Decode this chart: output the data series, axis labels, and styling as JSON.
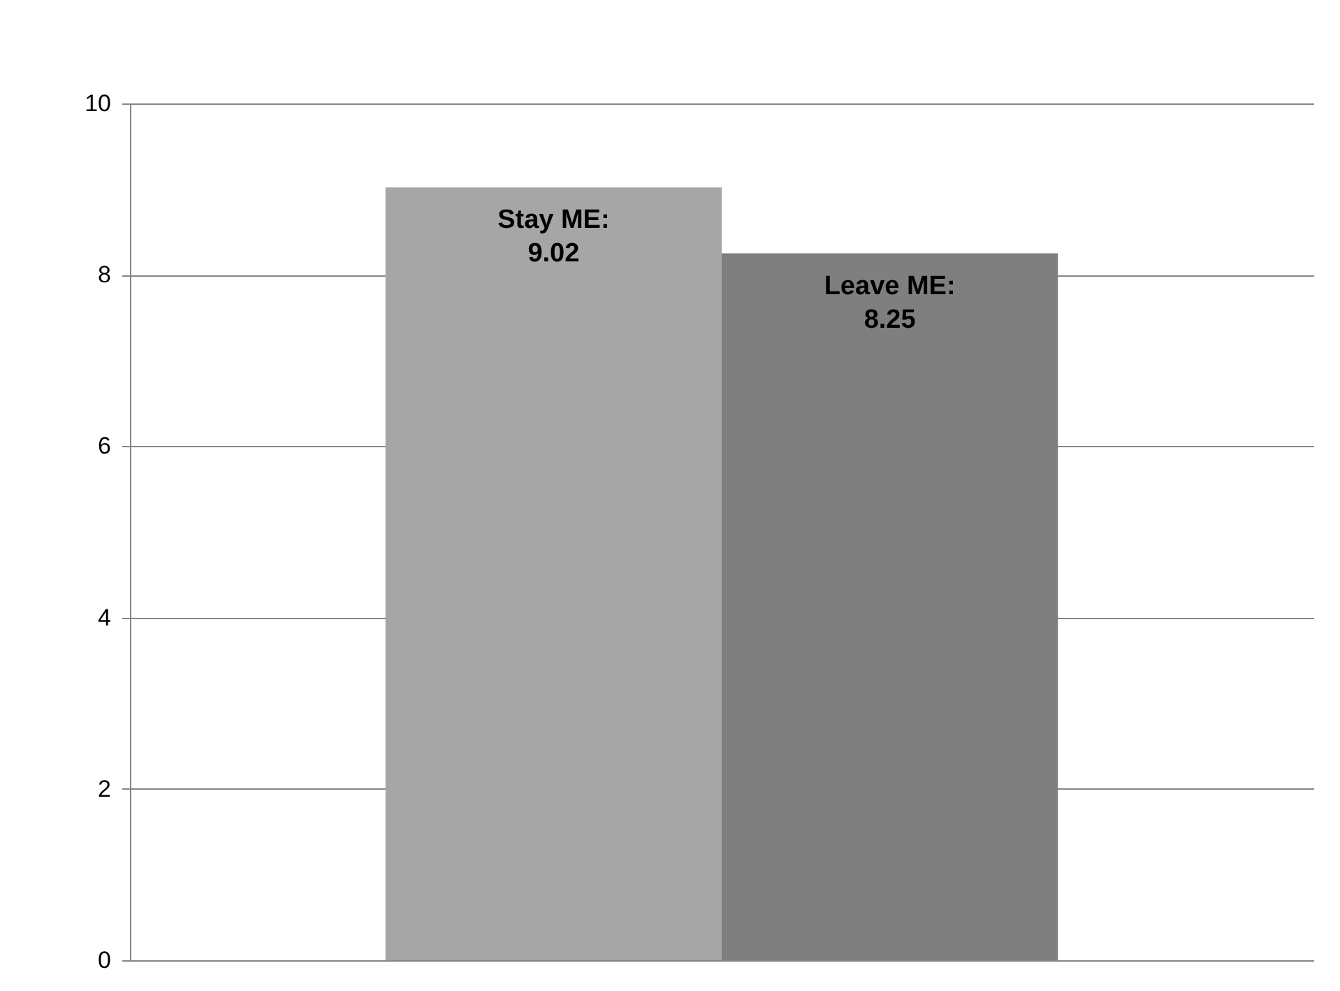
{
  "chart_data": {
    "type": "bar",
    "categories": [
      null
    ],
    "series": [
      {
        "color": "#a6a6a6",
        "values": [
          9.02
        ],
        "value_labels": [
          "Stay ME:\n9.02"
        ]
      },
      {
        "color": "#7f7f7f",
        "values": [
          8.25
        ],
        "value_labels": [
          "Leave ME:\n8.25"
        ]
      }
    ],
    "ylim": [
      0,
      10
    ],
    "yticks": [
      0,
      2,
      4,
      6,
      8,
      10
    ],
    "grid": "y",
    "tick_labels": "y",
    "legend": false
  }
}
